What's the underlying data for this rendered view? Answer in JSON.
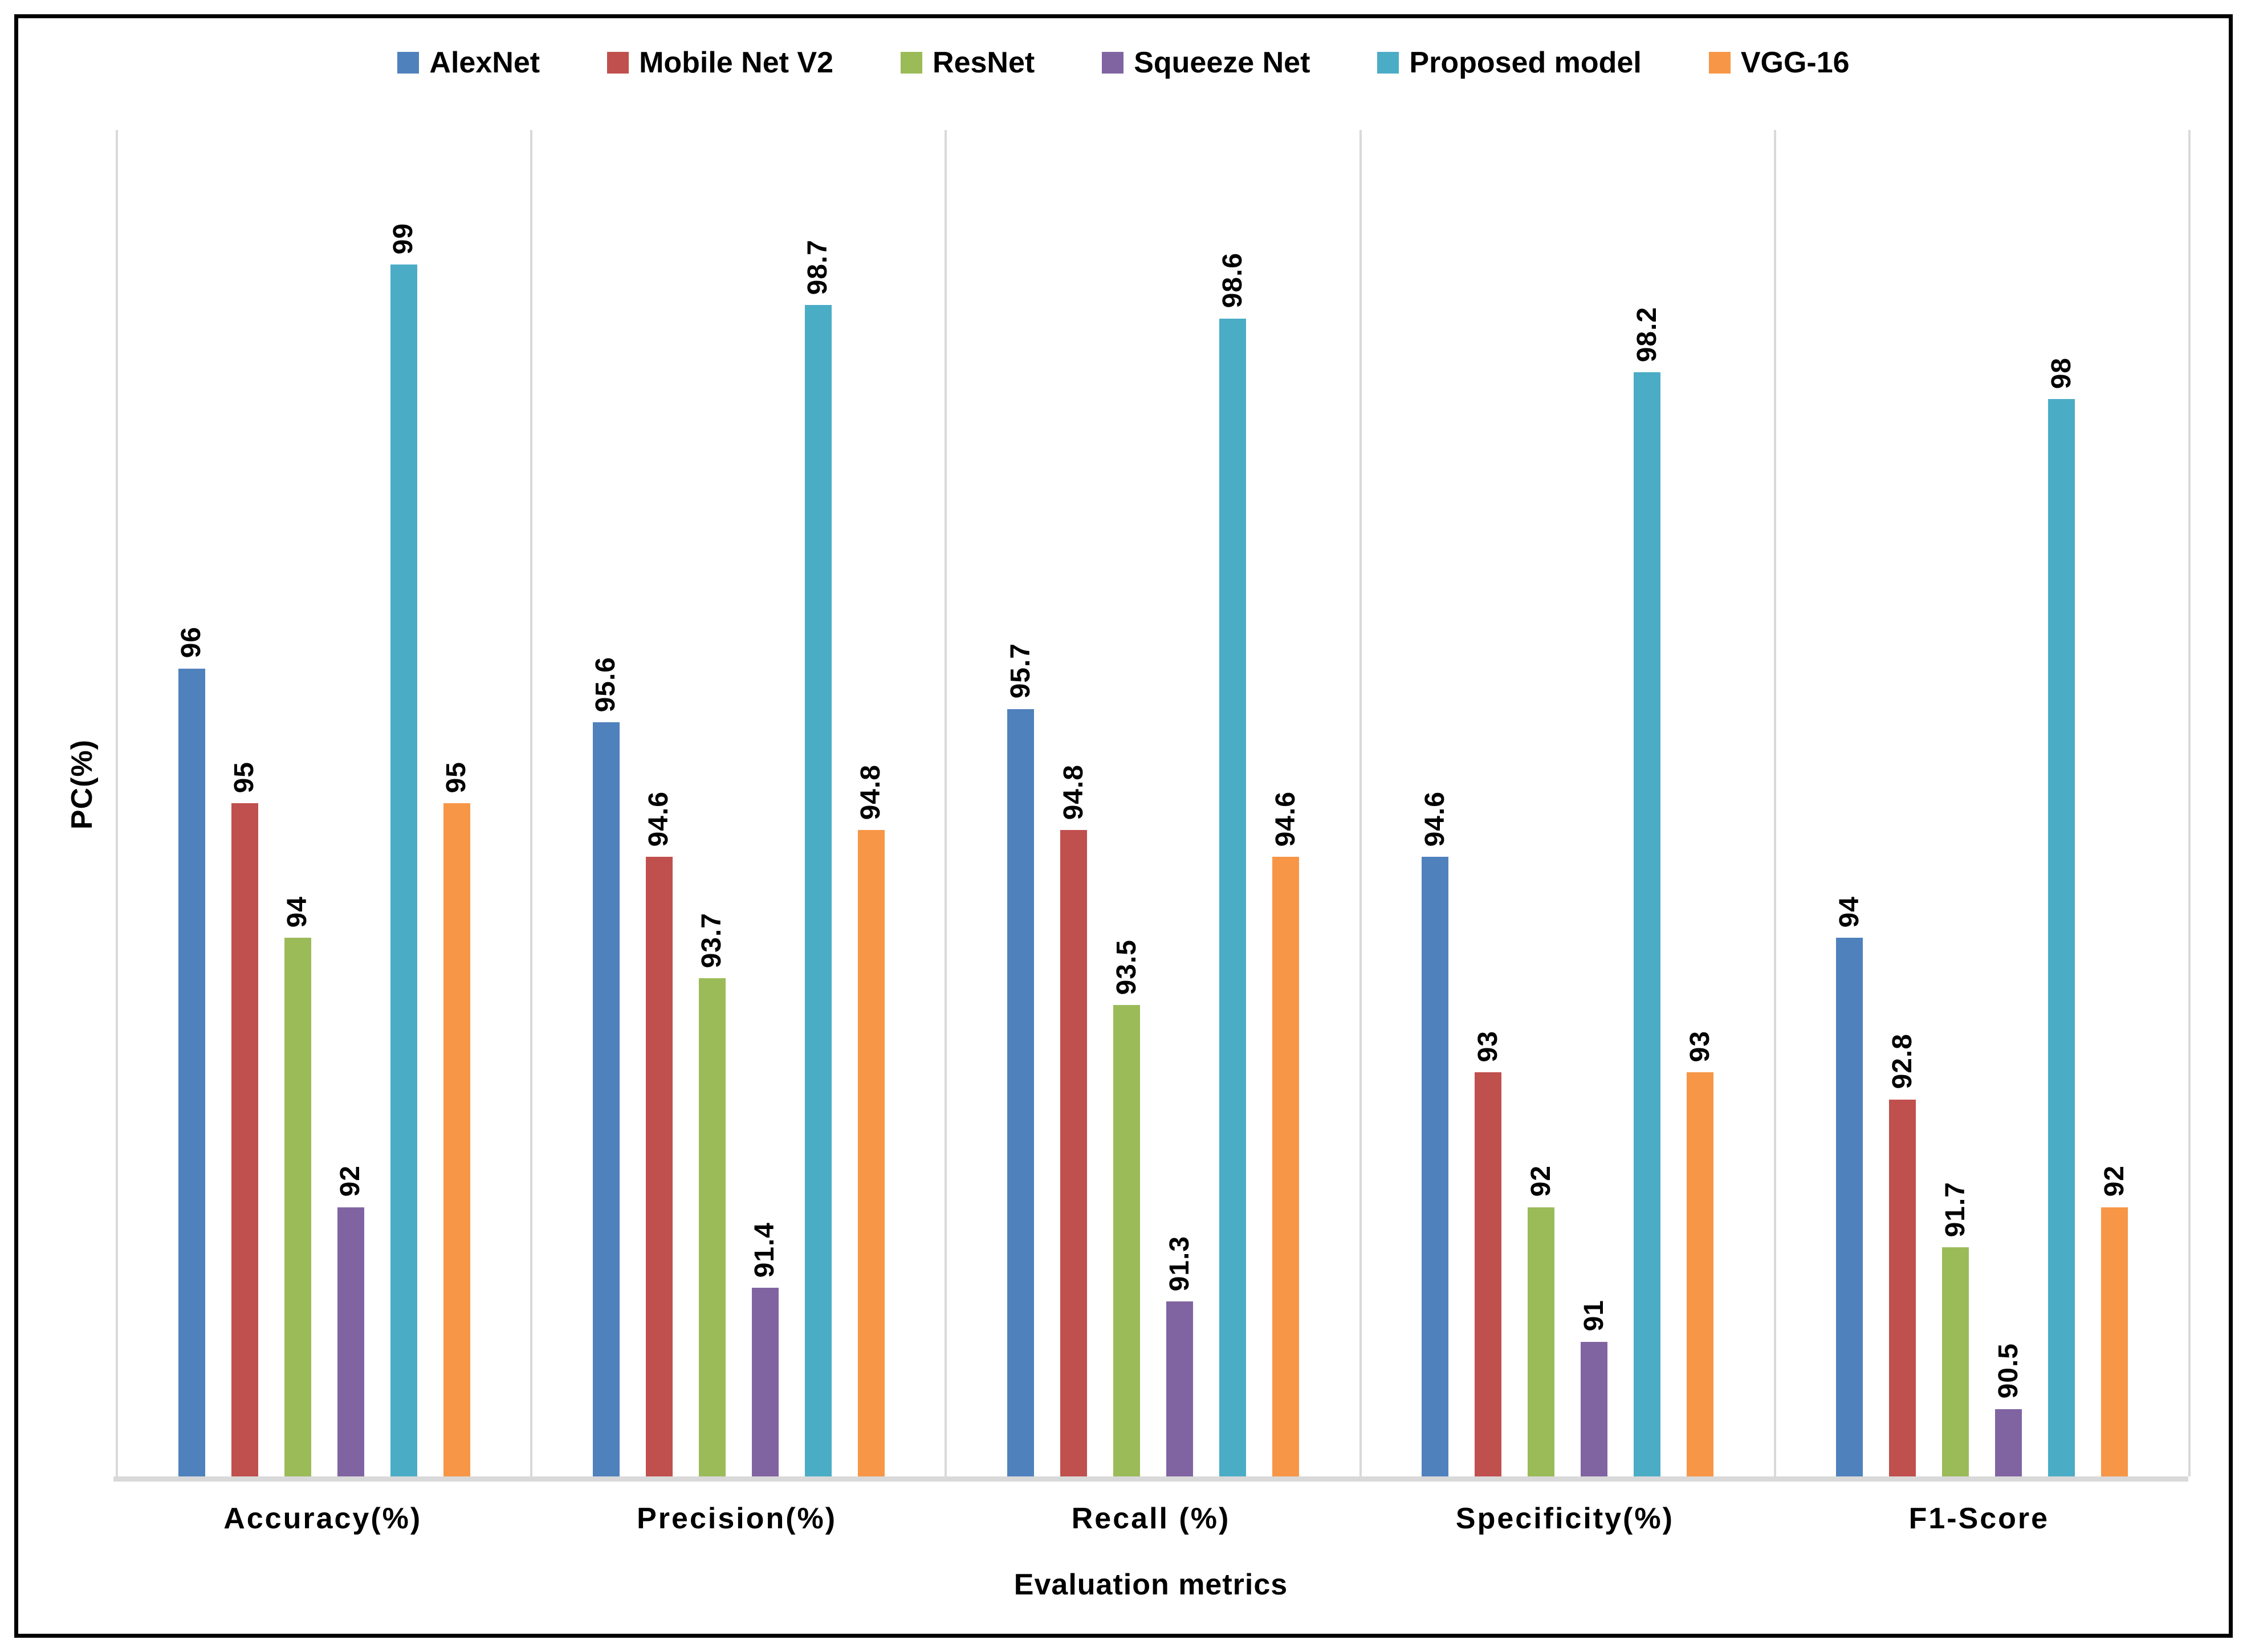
{
  "chart_data": {
    "type": "bar",
    "title": "",
    "categories": [
      "Accuracy(%)",
      "Precision(%)",
      "Recall (%)",
      "Specificity(%)",
      "F1-Score"
    ],
    "series": [
      {
        "name": "AlexNet",
        "color": "#4F81BD",
        "values": [
          96,
          95.6,
          95.7,
          94.6,
          94
        ]
      },
      {
        "name": "Mobile Net V2",
        "color": "#C0504D",
        "values": [
          95,
          94.6,
          94.8,
          93,
          92.8
        ]
      },
      {
        "name": "ResNet",
        "color": "#9BBB59",
        "values": [
          94,
          93.7,
          93.5,
          92,
          91.7
        ]
      },
      {
        "name": "Squeeze Net",
        "color": "#8064A2",
        "values": [
          92,
          91.4,
          91.3,
          91,
          90.5
        ]
      },
      {
        "name": "Proposed model",
        "color": "#4BACC6",
        "values": [
          99,
          98.7,
          98.6,
          98.2,
          98
        ]
      },
      {
        "name": "VGG-16",
        "color": "#F79646",
        "values": [
          95,
          94.8,
          94.6,
          93,
          92
        ]
      }
    ],
    "xlabel": "Evaluation metrics",
    "ylabel": "PC(%)",
    "ylim": [
      90,
      100
    ],
    "grid": false,
    "y_tick_labels": "none",
    "legend_position": "top",
    "data_labels": "value above each bar, rotated 90° (reads bottom-to-top), bold"
  },
  "colors": {
    "frame_border": "#000000",
    "axis_line": "#D9D9D9",
    "group_separator": "#D9D9D9",
    "text": "#000000",
    "background": "#FFFFFF"
  }
}
